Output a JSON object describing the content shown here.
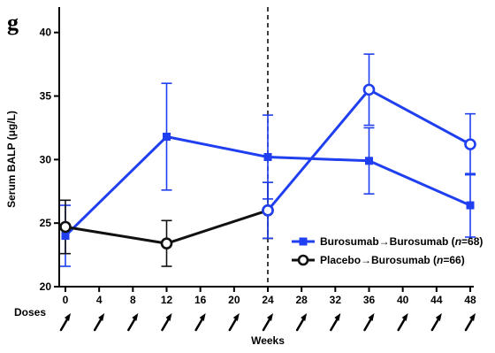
{
  "panel_label": "g",
  "colors": {
    "series_a": "#1f3ff0",
    "series_b": "#111111",
    "axis": "#000000"
  },
  "chart_data": {
    "type": "line",
    "title": "",
    "xlabel": "Weeks",
    "ylabel": "Serum BALP (μg/L)",
    "ylim": [
      20,
      42
    ],
    "xlim": [
      0,
      48
    ],
    "y_ticks": [
      20,
      25,
      30,
      35,
      40
    ],
    "x_ticks": [
      0,
      4,
      8,
      12,
      16,
      20,
      24,
      28,
      32,
      36,
      40,
      44,
      48
    ],
    "grid": false,
    "legend_position": "bottom-right",
    "reference_line": {
      "x": 24,
      "style": "dashed"
    },
    "doses_label": "Doses",
    "dose_weeks": [
      0,
      4,
      8,
      12,
      16,
      20,
      24,
      28,
      32,
      36,
      40,
      44,
      48
    ],
    "series": [
      {
        "name_prefix": "Burosumab→Burosumab (",
        "name_italic": "n",
        "name_suffix": "=68)",
        "marker": "square",
        "color": "#1f3ff0",
        "x": [
          0,
          12,
          24,
          36,
          48
        ],
        "y": [
          24.0,
          31.8,
          30.2,
          29.9,
          26.4
        ],
        "err_upper": [
          26.4,
          36.0,
          33.5,
          32.5,
          28.9
        ],
        "err_lower": [
          21.6,
          27.6,
          26.9,
          27.3,
          23.9
        ]
      },
      {
        "name_prefix": "Placebo→Burosumab (",
        "name_italic": "n",
        "name_suffix": "=66)",
        "marker": "circle",
        "color": "#111111",
        "x": [
          0,
          12,
          24
        ],
        "y": [
          24.7,
          23.4,
          26.0
        ],
        "err_upper": [
          26.8,
          25.2,
          28.2
        ],
        "err_lower": [
          22.6,
          21.6,
          23.8
        ]
      },
      {
        "name": "",
        "marker": "circle",
        "color": "#1f3ff0",
        "x": [
          24,
          36,
          48
        ],
        "y": [
          26.0,
          35.5,
          31.2
        ],
        "err_upper": [
          28.2,
          38.3,
          33.6
        ],
        "err_lower": [
          23.8,
          32.7,
          28.8
        ]
      }
    ]
  }
}
